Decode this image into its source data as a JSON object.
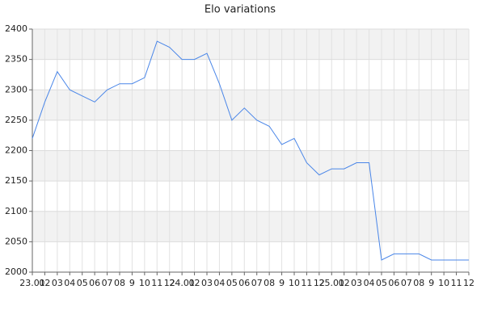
{
  "chart_data": {
    "type": "line",
    "title": "Elo variations",
    "categories": [
      "23.01",
      "02",
      "03",
      "04",
      "05",
      "06",
      "07",
      "08",
      "9",
      "10",
      "11",
      "12",
      "24.01",
      "02",
      "03",
      "04",
      "05",
      "06",
      "07",
      "08",
      "9",
      "10",
      "11",
      "12",
      "25.01",
      "02",
      "03",
      "04",
      "05",
      "06",
      "07",
      "08",
      "9",
      "10",
      "11",
      "12"
    ],
    "series": [
      {
        "name": "Elo",
        "color": "#4a86e8",
        "values": [
          2220,
          2280,
          2330,
          2300,
          2290,
          2280,
          2300,
          2310,
          2310,
          2320,
          2380,
          2370,
          2350,
          2350,
          2360,
          2310,
          2250,
          2270,
          2250,
          2240,
          2210,
          2220,
          2180,
          2160,
          2170,
          2170,
          2180,
          2180,
          2020,
          2030,
          2030,
          2030,
          2020,
          2020,
          2020,
          2020
        ]
      }
    ],
    "ylim": [
      2000,
      2400
    ],
    "yticks": [
      2000,
      2050,
      2100,
      2150,
      2200,
      2250,
      2300,
      2350,
      2400
    ],
    "grid": true
  }
}
